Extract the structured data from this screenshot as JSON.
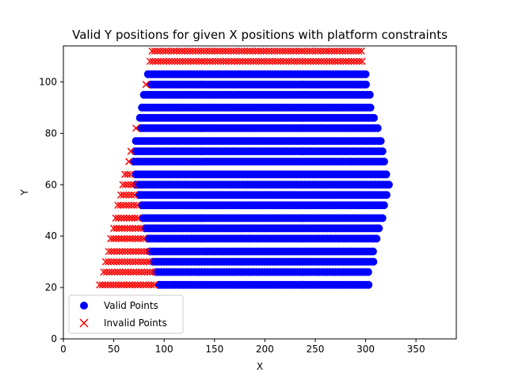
{
  "chart_data": {
    "type": "scatter",
    "title": "Valid Y positions for given X positions with platform constraints",
    "xlabel": "X",
    "ylabel": "Y",
    "xlim": [
      0,
      390
    ],
    "ylim": [
      0,
      114
    ],
    "xticks": [
      0,
      50,
      100,
      150,
      200,
      250,
      300,
      350
    ],
    "yticks": [
      0,
      20,
      40,
      60,
      80,
      100
    ],
    "x_step": 2.7,
    "legend": {
      "placement": "lower-left"
    },
    "grid": false,
    "series": [
      {
        "name": "Valid Points",
        "marker": "circle",
        "color": "#0000ff"
      },
      {
        "name": "Invalid Points",
        "marker": "x",
        "color": "#ff0000"
      }
    ],
    "rows": [
      {
        "y": 112,
        "valid": [],
        "invalid": [
          [
            88,
            296
          ]
        ]
      },
      {
        "y": 108,
        "valid": [],
        "invalid": [
          [
            86,
            297
          ]
        ]
      },
      {
        "y": 103,
        "valid": [
          [
            84,
            300
          ]
        ],
        "invalid": []
      },
      {
        "y": 99,
        "valid": [
          [
            87,
            302
          ]
        ],
        "invalid": [
          [
            82,
            84
          ]
        ]
      },
      {
        "y": 95,
        "valid": [
          [
            80,
            305
          ]
        ],
        "invalid": []
      },
      {
        "y": 90,
        "valid": [
          [
            78,
            307
          ]
        ],
        "invalid": []
      },
      {
        "y": 86,
        "valid": [
          [
            76,
            310
          ]
        ],
        "invalid": []
      },
      {
        "y": 82,
        "valid": [
          [
            77,
            312
          ]
        ],
        "invalid": [
          [
            72,
            74
          ]
        ]
      },
      {
        "y": 77,
        "valid": [
          [
            72,
            315
          ]
        ],
        "invalid": []
      },
      {
        "y": 73,
        "valid": [
          [
            71,
            317
          ]
        ],
        "invalid": [
          [
            67,
            67
          ]
        ]
      },
      {
        "y": 69,
        "valid": [
          [
            70,
            320
          ]
        ],
        "invalid": [
          [
            65,
            65
          ]
        ]
      },
      {
        "y": 64,
        "valid": [
          [
            72,
            322
          ]
        ],
        "invalid": [
          [
            61,
            67
          ]
        ]
      },
      {
        "y": 60,
        "valid": [
          [
            72,
            325
          ]
        ],
        "invalid": [
          [
            59,
            70
          ]
        ]
      },
      {
        "y": 56,
        "valid": [
          [
            75,
            322
          ]
        ],
        "invalid": [
          [
            57,
            72
          ]
        ]
      },
      {
        "y": 52,
        "valid": [
          [
            78,
            320
          ]
        ],
        "invalid": [
          [
            54,
            75
          ]
        ]
      },
      {
        "y": 47,
        "valid": [
          [
            79,
            317
          ]
        ],
        "invalid": [
          [
            52,
            76
          ]
        ]
      },
      {
        "y": 43,
        "valid": [
          [
            81,
            315
          ]
        ],
        "invalid": [
          [
            50,
            78
          ]
        ]
      },
      {
        "y": 39,
        "valid": [
          [
            84,
            312
          ]
        ],
        "invalid": [
          [
            47,
            81
          ]
        ]
      },
      {
        "y": 34,
        "valid": [
          [
            86,
            310
          ]
        ],
        "invalid": [
          [
            45,
            83
          ]
        ]
      },
      {
        "y": 30,
        "valid": [
          [
            89,
            308
          ]
        ],
        "invalid": [
          [
            42,
            86
          ]
        ]
      },
      {
        "y": 26,
        "valid": [
          [
            92,
            305
          ]
        ],
        "invalid": [
          [
            40,
            89
          ]
        ]
      },
      {
        "y": 21,
        "valid": [
          [
            95,
            303
          ]
        ],
        "invalid": [
          [
            36,
            92
          ]
        ]
      }
    ]
  }
}
